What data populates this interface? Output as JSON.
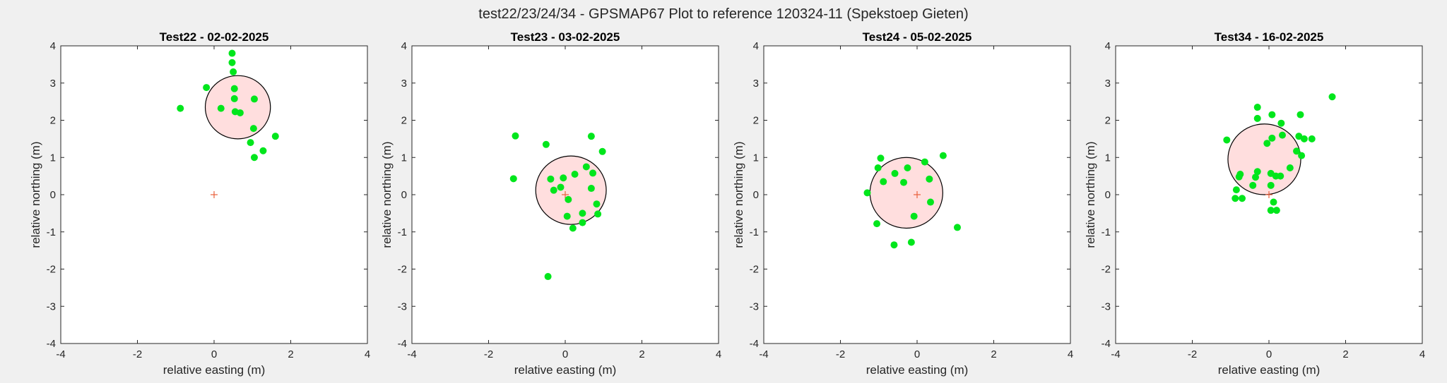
{
  "figure": {
    "title": "test22/23/24/34 - GPSMAP67 Plot to reference 120324-11 (Spekstoep Gieten)"
  },
  "colors": {
    "background": "#f0f0f0",
    "axes_background": "#ffffff",
    "points": "#00e61c",
    "circle_fill": "#ffdede",
    "circle_edge": "#000000",
    "reference_marker": "#e8603c"
  },
  "chart_data": [
    {
      "type": "scatter",
      "title": "Test22 - 02-02-2025",
      "xlabel": "relative easting (m)",
      "ylabel": "relative northing (m)",
      "xlim": [
        -4,
        4
      ],
      "ylim": [
        -4,
        4
      ],
      "xticks": [
        -4,
        -2,
        0,
        2,
        4
      ],
      "yticks": [
        -4,
        -3,
        -2,
        -1,
        0,
        1,
        2,
        3,
        4
      ],
      "grid": false,
      "reference": {
        "x": 0,
        "y": 0,
        "marker": "+"
      },
      "circle": {
        "cx": 0.62,
        "cy": 2.35,
        "r": 0.85
      },
      "points": [
        [
          0.47,
          3.8
        ],
        [
          0.47,
          3.55
        ],
        [
          0.5,
          3.3
        ],
        [
          -0.2,
          2.88
        ],
        [
          0.53,
          2.85
        ],
        [
          -0.88,
          2.32
        ],
        [
          0.18,
          2.32
        ],
        [
          0.53,
          2.58
        ],
        [
          1.05,
          2.57
        ],
        [
          0.55,
          2.23
        ],
        [
          0.68,
          2.2
        ],
        [
          1.03,
          1.78
        ],
        [
          1.6,
          1.57
        ],
        [
          0.95,
          1.4
        ],
        [
          1.28,
          1.18
        ],
        [
          1.05,
          1.0
        ]
      ]
    },
    {
      "type": "scatter",
      "title": "Test23 - 03-02-2025",
      "xlabel": "relative easting (m)",
      "ylabel": "relative northing (m)",
      "xlim": [
        -4,
        4
      ],
      "ylim": [
        -4,
        4
      ],
      "xticks": [
        -4,
        -2,
        0,
        2,
        4
      ],
      "yticks": [
        -4,
        -3,
        -2,
        -1,
        0,
        1,
        2,
        3,
        4
      ],
      "grid": false,
      "reference": {
        "x": 0,
        "y": 0,
        "marker": "+"
      },
      "circle": {
        "cx": 0.15,
        "cy": 0.12,
        "r": 0.92
      },
      "points": [
        [
          -1.3,
          1.58
        ],
        [
          -0.5,
          1.35
        ],
        [
          0.68,
          1.57
        ],
        [
          0.97,
          1.16
        ],
        [
          -1.35,
          0.43
        ],
        [
          -0.38,
          0.42
        ],
        [
          -0.05,
          0.45
        ],
        [
          0.25,
          0.55
        ],
        [
          0.55,
          0.75
        ],
        [
          0.72,
          0.58
        ],
        [
          -0.3,
          0.12
        ],
        [
          -0.12,
          0.2
        ],
        [
          0.68,
          0.17
        ],
        [
          0.08,
          -0.13
        ],
        [
          0.82,
          -0.25
        ],
        [
          0.05,
          -0.58
        ],
        [
          0.45,
          -0.5
        ],
        [
          0.85,
          -0.52
        ],
        [
          0.45,
          -0.75
        ],
        [
          0.2,
          -0.9
        ],
        [
          -0.45,
          -2.2
        ]
      ]
    },
    {
      "type": "scatter",
      "title": "Test24 - 05-02-2025",
      "xlabel": "relative easting (m)",
      "ylabel": "relative northing (m)",
      "xlim": [
        -4,
        4
      ],
      "ylim": [
        -4,
        4
      ],
      "xticks": [
        -4,
        -2,
        0,
        2,
        4
      ],
      "yticks": [
        -4,
        -3,
        -2,
        -1,
        0,
        1,
        2,
        3,
        4
      ],
      "grid": false,
      "reference": {
        "x": 0,
        "y": 0,
        "marker": "+"
      },
      "circle": {
        "cx": -0.28,
        "cy": 0.05,
        "r": 0.95
      },
      "points": [
        [
          -0.95,
          0.98
        ],
        [
          0.68,
          1.05
        ],
        [
          -1.02,
          0.72
        ],
        [
          -0.58,
          0.57
        ],
        [
          -0.25,
          0.72
        ],
        [
          0.2,
          0.88
        ],
        [
          -0.88,
          0.35
        ],
        [
          -0.35,
          0.33
        ],
        [
          0.32,
          0.42
        ],
        [
          -1.3,
          0.05
        ],
        [
          0.35,
          -0.2
        ],
        [
          -0.08,
          -0.58
        ],
        [
          -1.05,
          -0.78
        ],
        [
          1.05,
          -0.88
        ],
        [
          -0.6,
          -1.35
        ],
        [
          -0.15,
          -1.28
        ]
      ]
    },
    {
      "type": "scatter",
      "title": "Test34 - 16-02-2025",
      "xlabel": "relative easting (m)",
      "ylabel": "relative northing (m)",
      "xlim": [
        -4,
        4
      ],
      "ylim": [
        -4,
        4
      ],
      "xticks": [
        -4,
        -2,
        0,
        2,
        4
      ],
      "yticks": [
        -4,
        -3,
        -2,
        -1,
        0,
        1,
        2,
        3,
        4
      ],
      "grid": false,
      "reference": {
        "x": 0,
        "y": 0,
        "marker": "+"
      },
      "circle": {
        "cx": -0.12,
        "cy": 0.95,
        "r": 0.95
      },
      "points": [
        [
          -0.3,
          2.35
        ],
        [
          -0.3,
          2.05
        ],
        [
          0.08,
          2.15
        ],
        [
          0.82,
          2.15
        ],
        [
          1.65,
          2.63
        ],
        [
          0.32,
          1.92
        ],
        [
          -1.1,
          1.47
        ],
        [
          0.08,
          1.52
        ],
        [
          0.35,
          1.6
        ],
        [
          0.78,
          1.57
        ],
        [
          0.92,
          1.5
        ],
        [
          1.12,
          1.5
        ],
        [
          -0.3,
          0.62
        ],
        [
          -0.75,
          0.55
        ],
        [
          -0.35,
          0.47
        ],
        [
          -0.05,
          1.38
        ],
        [
          0.72,
          1.17
        ],
        [
          0.85,
          1.05
        ],
        [
          0.55,
          0.72
        ],
        [
          -0.78,
          0.48
        ],
        [
          0.05,
          0.57
        ],
        [
          0.18,
          0.5
        ],
        [
          0.3,
          0.5
        ],
        [
          -0.42,
          0.25
        ],
        [
          0.05,
          0.25
        ],
        [
          -0.85,
          0.13
        ],
        [
          -0.88,
          -0.1
        ],
        [
          -0.7,
          -0.1
        ],
        [
          0.12,
          -0.2
        ],
        [
          0.05,
          -0.42
        ],
        [
          0.2,
          -0.42
        ]
      ]
    }
  ]
}
